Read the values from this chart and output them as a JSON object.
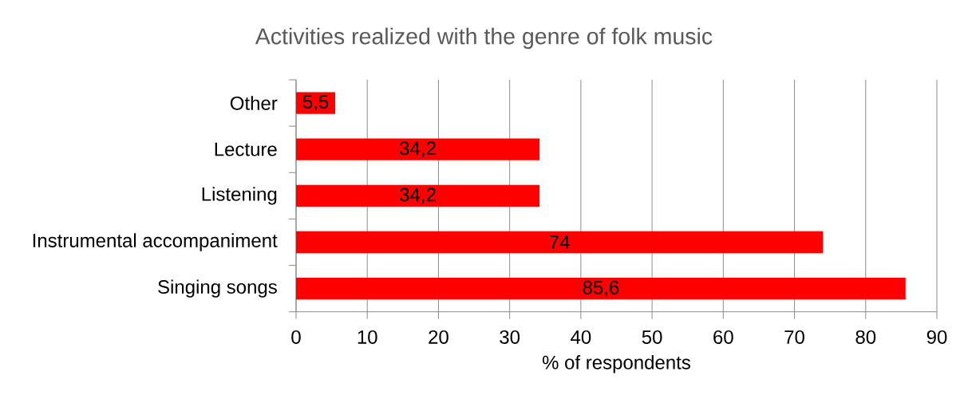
{
  "chart_data": {
    "type": "bar",
    "orientation": "horizontal",
    "title": "Activities realized with the genre of folk music",
    "xlabel": "% of respondents",
    "categories": [
      "Other",
      "Lecture",
      "Listening",
      "Instrumental accompaniment",
      "Singing songs"
    ],
    "values": [
      5.5,
      34.2,
      34.2,
      74,
      85.6
    ],
    "value_labels": [
      "5,5",
      "34,2",
      "34,2",
      "74",
      "85,6"
    ],
    "color": "#ff0000",
    "xlim": [
      0,
      90
    ],
    "xticks": [
      0,
      10,
      20,
      30,
      40,
      50,
      60,
      70,
      80,
      90
    ],
    "grid": "x"
  }
}
